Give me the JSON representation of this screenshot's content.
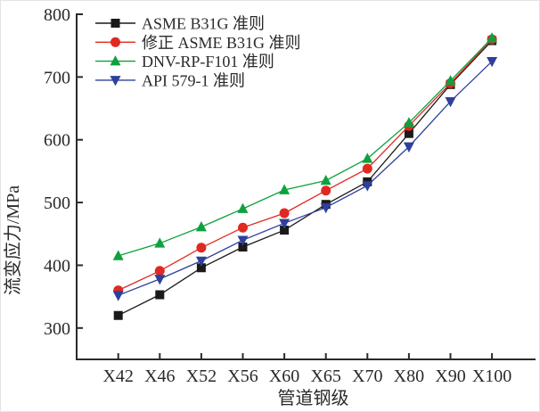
{
  "figure": {
    "background": "#ffffff",
    "axis_color": "#2a2a2a",
    "text_color": "#2a2a2a"
  },
  "chart_data": {
    "type": "line",
    "title": "",
    "xlabel": "管道钢级",
    "ylabel": "流变应力/MPa",
    "categories": [
      "X42",
      "X46",
      "X52",
      "X56",
      "X60",
      "X65",
      "X70",
      "X80",
      "X90",
      "X100"
    ],
    "series": [
      {
        "name": "ASME B31G 准则",
        "marker": "square",
        "color": "#1a1a1a",
        "values": [
          320,
          353,
          396,
          429,
          456,
          497,
          533,
          610,
          688,
          758
        ]
      },
      {
        "name": "修正 ASME B31G 准则",
        "marker": "circle",
        "color": "#e02920",
        "values": [
          360,
          391,
          428,
          460,
          483,
          519,
          554,
          622,
          690,
          760
        ]
      },
      {
        "name": "DNV-RP-F101 准则",
        "marker": "triangle-up",
        "color": "#0ea13e",
        "values": [
          415,
          435,
          461,
          490,
          520,
          535,
          570,
          627,
          694,
          762
        ]
      },
      {
        "name": "API 579-1 准则",
        "marker": "triangle-down",
        "color": "#2e3f9c",
        "values": [
          352,
          378,
          407,
          440,
          467,
          492,
          527,
          589,
          661,
          725
        ]
      }
    ],
    "y_ticks": [
      300,
      400,
      500,
      600,
      700,
      800
    ],
    "ylim": [
      250,
      800
    ],
    "grid": false,
    "legend_position": "top-left"
  }
}
